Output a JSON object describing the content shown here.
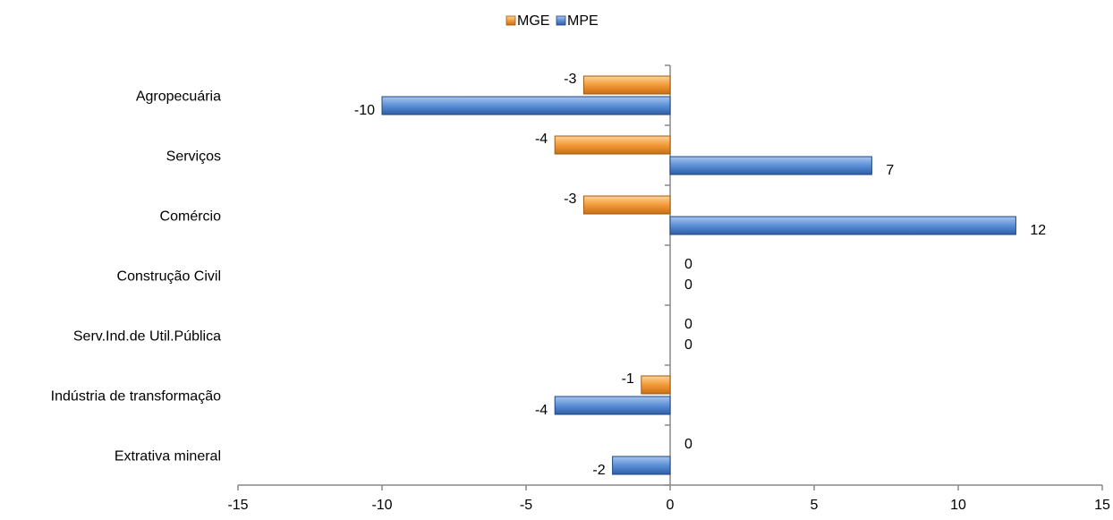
{
  "chart_data": {
    "type": "bar",
    "orientation": "horizontal",
    "categories": [
      "Agropecuária",
      "Serviços",
      "Comércio",
      "Construção Civil",
      "Serv.Ind.de Util.Pública",
      "Indústria de transformação",
      "Extrativa mineral"
    ],
    "series": [
      {
        "name": "MGE",
        "values": [
          -3,
          -4,
          -3,
          0,
          0,
          -1,
          0
        ],
        "color": "#F0962E"
      },
      {
        "name": "MPE",
        "values": [
          -10,
          7,
          12,
          0,
          0,
          -4,
          -2
        ],
        "color": "#4A7FC8"
      }
    ],
    "xlim": [
      -15,
      15
    ],
    "xticks": [
      "-15",
      "-10",
      "-5",
      "0",
      "5",
      "10",
      "15"
    ],
    "legend": "top-center",
    "grid": false
  }
}
